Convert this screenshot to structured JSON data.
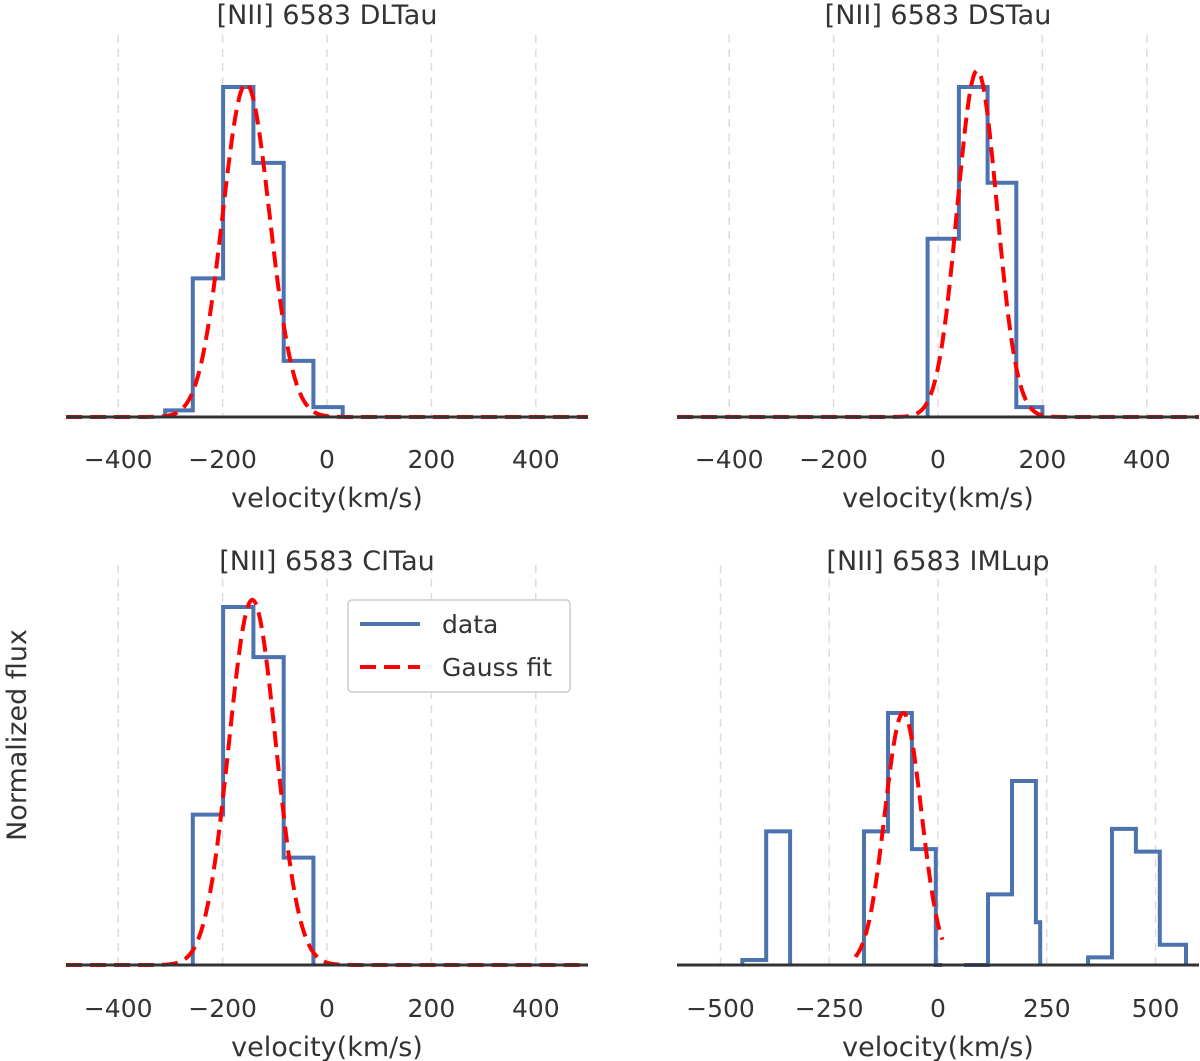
{
  "figure": {
    "ylabel": "Normalized flux"
  },
  "colors": {
    "data": "#4c72b0",
    "fit": "#ff0000",
    "grid": "#dddddd",
    "axis": "#333333"
  },
  "legend": {
    "data_label": "data",
    "fit_label": "Gauss fit",
    "placement": "upper-right of bottom-left panel"
  },
  "chart_data": [
    {
      "type": "line",
      "title": "[NII] 6583 DLTau",
      "xlabel": "velocity(km/s)",
      "ylabel": "",
      "xlim": [
        -500,
        500
      ],
      "ylim": [
        0,
        1.0
      ],
      "xticks": [
        -400,
        -200,
        0,
        200,
        400
      ],
      "xtick_labels": [
        "−400",
        "−200",
        "0",
        "200",
        "400"
      ],
      "series": [
        {
          "name": "data",
          "style": "step",
          "x": [
            -310,
            -257,
            -199,
            -141,
            -83,
            -26,
            30
          ],
          "y": [
            0.02,
            0.42,
            1.0,
            0.77,
            0.17,
            0.03,
            0.0
          ]
        },
        {
          "name": "Gauss fit",
          "style": "gaussian",
          "amp": 1.01,
          "mu": -155,
          "sigma": 45,
          "xrange": [
            -500,
            500
          ]
        }
      ]
    },
    {
      "type": "line",
      "title": "[NII] 6583 DSTau",
      "xlabel": "velocity(km/s)",
      "ylabel": "",
      "xlim": [
        -500,
        500
      ],
      "ylim": [
        0,
        1.0
      ],
      "xticks": [
        -400,
        -200,
        0,
        200,
        400
      ],
      "xtick_labels": [
        "−400",
        "−200",
        "0",
        "200",
        "400"
      ],
      "series": [
        {
          "name": "data",
          "style": "step",
          "x": [
            -20,
            40,
            95,
            150,
            200
          ],
          "y": [
            0.54,
            1.0,
            0.71,
            0.03,
            0.0
          ]
        },
        {
          "name": "Gauss fit",
          "style": "gaussian",
          "amp": 1.05,
          "mu": 75,
          "sigma": 38,
          "xrange": [
            -500,
            500
          ]
        }
      ]
    },
    {
      "type": "line",
      "title": "[NII] 6583 CITau",
      "xlabel": "velocity(km/s)",
      "ylabel": "",
      "xlim": [
        -500,
        500
      ],
      "ylim": [
        0,
        1.0
      ],
      "xticks": [
        -400,
        -200,
        0,
        200,
        400
      ],
      "xtick_labels": [
        "−400",
        "−200",
        "0",
        "200",
        "400"
      ],
      "series": [
        {
          "name": "data",
          "style": "step",
          "x": [
            -257,
            -199,
            -141,
            -83,
            -26
          ],
          "y": [
            0.42,
            1.0,
            0.86,
            0.3,
            0.0
          ]
        },
        {
          "name": "Gauss fit",
          "style": "gaussian",
          "amp": 1.02,
          "mu": -143,
          "sigma": 45,
          "xrange": [
            -500,
            500
          ]
        }
      ]
    },
    {
      "type": "line",
      "title": "[NII] 6583 IMLup",
      "xlabel": "velocity(km/s)",
      "ylabel": "",
      "xlim": [
        -600,
        600
      ],
      "ylim": [
        0,
        1.0
      ],
      "xticks": [
        -500,
        -250,
        0,
        250,
        500
      ],
      "xtick_labels": [
        "−500",
        "−250",
        "0",
        "250",
        "500"
      ],
      "series": [
        {
          "name": "data",
          "style": "segments",
          "segments": [
            {
              "x": [
                -450,
                -395,
                -340
              ],
              "y": [
                0.02,
                0.53,
                0.0
              ]
            },
            {
              "x": [
                -170,
                -115,
                -60,
                -5,
                10
              ],
              "y": [
                0.53,
                1.0,
                0.46,
                0.0,
                0.0
              ]
            },
            {
              "x": [
                60,
                115,
                170,
                225,
                235
              ],
              "y": [
                0.0,
                0.28,
                0.73,
                0.17,
                0.0
              ]
            },
            {
              "x": [
                345,
                400,
                455,
                510,
                570
              ],
              "y": [
                0.03,
                0.54,
                0.45,
                0.08,
                0.0
              ]
            }
          ]
        },
        {
          "name": "Gauss fit",
          "style": "gaussian",
          "amp": 1.0,
          "mu": -80,
          "sigma": 42,
          "xrange": [
            -190,
            10
          ]
        }
      ]
    }
  ]
}
